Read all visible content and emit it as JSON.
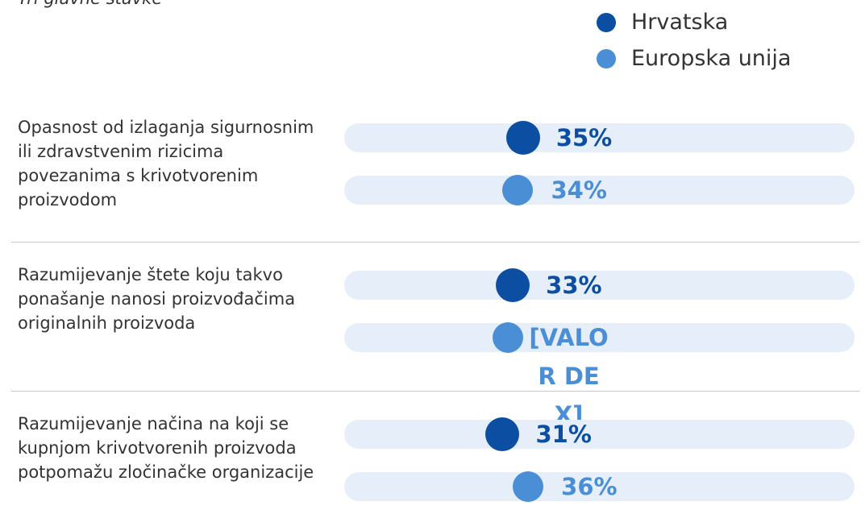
{
  "chart_data": {
    "type": "dot",
    "title": "Tri glavne stavke",
    "categories": [
      "Opasnost od izlaganja sigurnosnim ili zdravstvenim rizicima povezanima s krivotvorenim proizvodom",
      "Razumijevanje štete koju takvo ponašanje nanosi proizvođačima originalnih proizvoda",
      "Razumijevanje načina na koji se kupnjom krivotvorenih proizvoda potpomažu zločinačke organizacije"
    ],
    "series": [
      {
        "name": "Hrvatska",
        "color": "#0b4ea2",
        "values": [
          35,
          33,
          31
        ],
        "value_labels": [
          "35%",
          "33%",
          "31%"
        ]
      },
      {
        "name": "Europska unija",
        "color": "#4a8fd6",
        "values": [
          34,
          32,
          36
        ],
        "value_labels": [
          "34%",
          "[VALOR DE X]",
          "36%"
        ]
      }
    ],
    "xlim": [
      0,
      100
    ],
    "legend": "top-right"
  }
}
